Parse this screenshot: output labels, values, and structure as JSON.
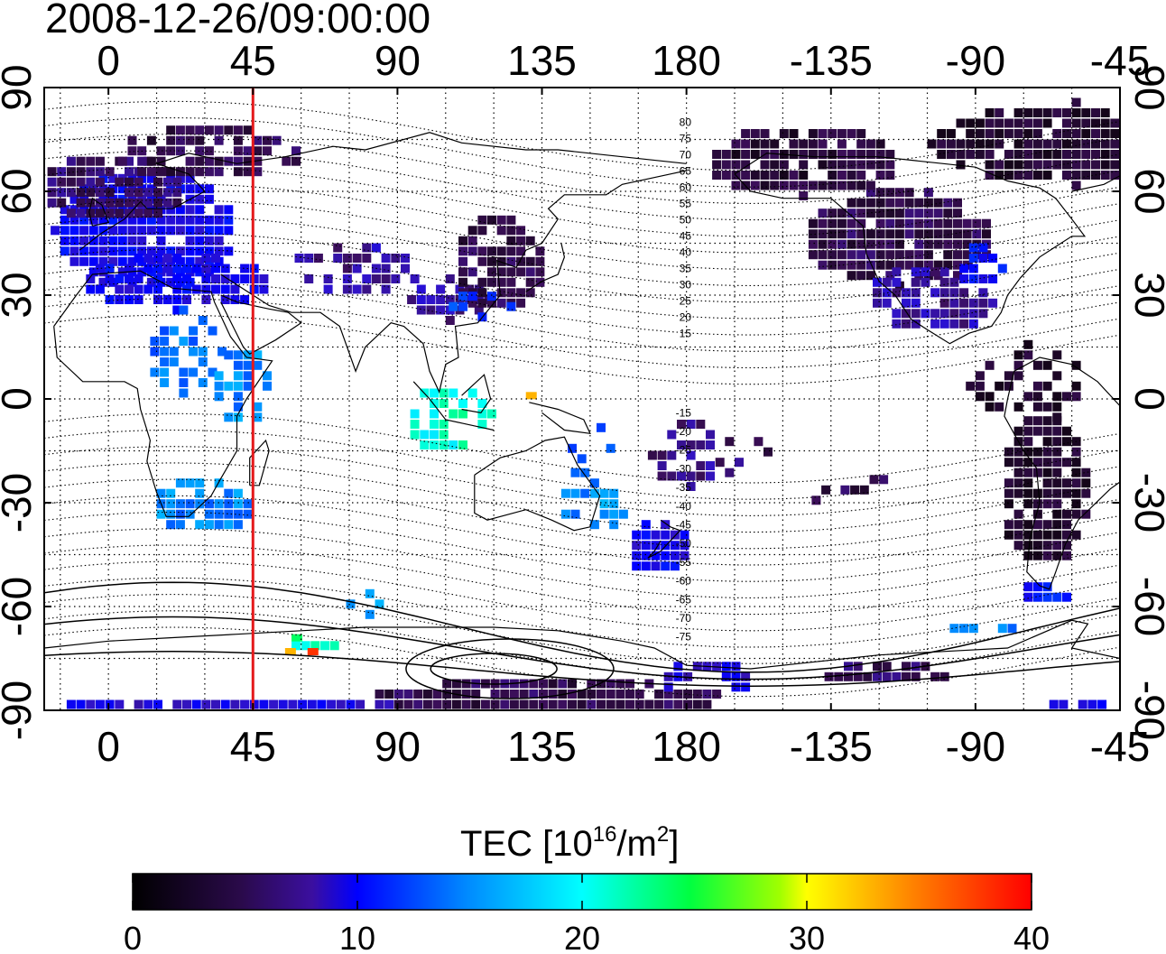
{
  "title": "2008-12-26/09:00:00",
  "map": {
    "x_tick_labels": [
      "0",
      "45",
      "90",
      "135",
      "180",
      "-135",
      "-90",
      "-45"
    ],
    "x_tick_longitudes": [
      0,
      45,
      90,
      135,
      180,
      225,
      270,
      315
    ],
    "y_tick_labels": [
      "90",
      "60",
      "30",
      "0",
      "-30",
      "-60",
      "-90"
    ],
    "y_tick_latitudes": [
      90,
      60,
      30,
      0,
      -30,
      -60,
      -90
    ],
    "lon_range": [
      -20,
      315
    ],
    "lat_range": [
      -90,
      90
    ],
    "marker_longitude": 45,
    "marker_color": "#e41a1c",
    "contour_labels_north": [
      "80",
      "75",
      "70",
      "65",
      "60",
      "55",
      "50",
      "45",
      "40",
      "35",
      "30",
      "25",
      "20",
      "15"
    ],
    "contour_labels_south": [
      "-15",
      "-20",
      "-25",
      "-30",
      "-35",
      "-40",
      "-45",
      "-50",
      "-55",
      "-60",
      "-65",
      "-70",
      "-75"
    ]
  },
  "colorbar": {
    "label_text": "TEC  [10",
    "label_sup1": "16",
    "label_mid": "/m",
    "label_sup2": "2",
    "label_end": "]",
    "min": 0,
    "max": 40,
    "ticks": [
      "0",
      "10",
      "20",
      "30",
      "40"
    ],
    "colors": [
      "#1a0a1a",
      "#3d1466",
      "#2020d0",
      "#0000ff",
      "#00ffff",
      "#00ff00",
      "#ffff00",
      "#ff8000",
      "#ff0000"
    ]
  }
}
